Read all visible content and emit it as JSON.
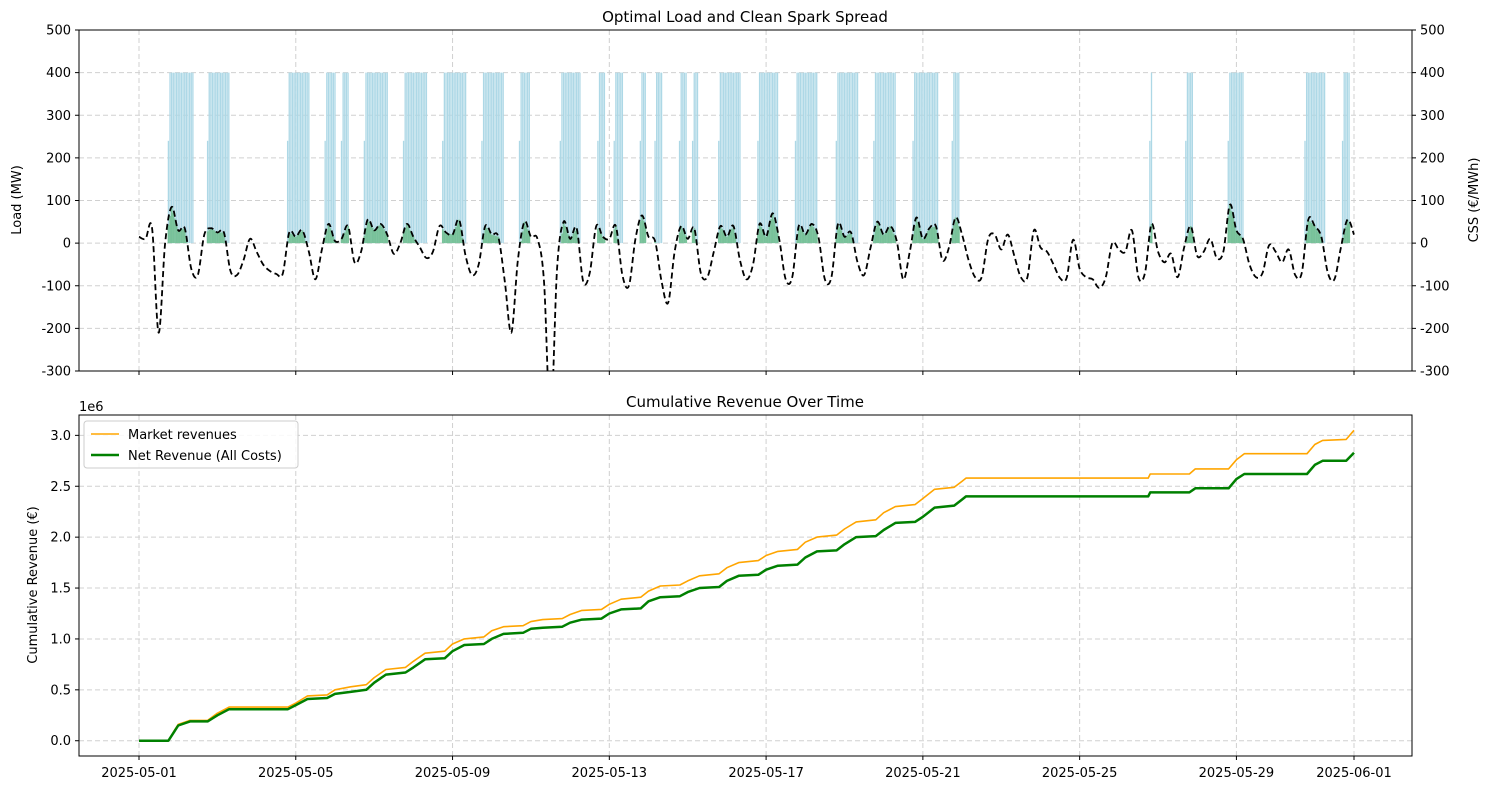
{
  "chart_data": [
    {
      "type": "bar",
      "title": "Optimal Load and Clean Spark Spread",
      "xlabel": "",
      "ylabel": "Load (MW)",
      "ylabel_right": "CSS (€/MWh)",
      "ylim": [
        -300,
        500
      ],
      "ylim_right": [
        -300,
        500
      ],
      "yticks": [
        -300,
        -200,
        -100,
        0,
        100,
        200,
        300,
        400,
        500
      ],
      "x_start": "2025-05-01",
      "x_unit": "days since 2025-05-01",
      "grid": true,
      "colors": {
        "load": "#add8e6",
        "css_positive_fill": "#66b982",
        "css_line": "#000000"
      },
      "load_series": {
        "name": "Load (MW)",
        "level_mw": 400,
        "running_hour_ranges": [
          [
            18,
            33
          ],
          [
            42,
            55
          ],
          [
            91,
            104
          ],
          [
            114,
            120
          ],
          [
            124,
            128
          ],
          [
            138,
            152
          ],
          [
            162,
            176
          ],
          [
            186,
            200
          ],
          [
            210,
            223
          ],
          [
            233,
            239
          ],
          [
            258,
            270
          ],
          [
            281,
            285
          ],
          [
            291,
            296
          ],
          [
            307,
            310
          ],
          [
            316,
            320
          ],
          [
            331,
            335
          ],
          [
            339,
            342
          ],
          [
            355,
            368
          ],
          [
            379,
            391
          ],
          [
            402,
            415
          ],
          [
            427,
            440
          ],
          [
            450,
            463
          ],
          [
            474,
            489
          ],
          [
            498,
            502
          ],
          [
            619,
            620
          ],
          [
            641,
            645
          ],
          [
            667,
            676
          ],
          [
            714,
            726
          ],
          [
            737,
            741
          ]
        ]
      },
      "css_series": {
        "name": "CSS (€/MWh)",
        "step_hours": 4,
        "values": [
          15,
          10,
          35,
          -210,
          0,
          85,
          30,
          35,
          -60,
          -75,
          20,
          35,
          25,
          25,
          -65,
          -75,
          -40,
          10,
          -20,
          -50,
          -65,
          -72,
          -72,
          25,
          15,
          30,
          -20,
          -85,
          -15,
          45,
          5,
          10,
          40,
          -45,
          -20,
          55,
          30,
          45,
          20,
          -25,
          0,
          45,
          15,
          -10,
          -35,
          -20,
          40,
          25,
          20,
          55,
          -30,
          -75,
          -50,
          40,
          20,
          15,
          -90,
          -210,
          -40,
          50,
          15,
          10,
          -90,
          -420,
          -60,
          50,
          10,
          35,
          -90,
          -70,
          40,
          15,
          10,
          40,
          -75,
          -100,
          10,
          65,
          15,
          5,
          -90,
          -140,
          -20,
          40,
          10,
          35,
          -70,
          -80,
          -20,
          40,
          15,
          40,
          -40,
          -85,
          -50,
          45,
          15,
          70,
          10,
          -85,
          -80,
          40,
          20,
          45,
          15,
          -85,
          -80,
          45,
          15,
          25,
          -45,
          -75,
          -10,
          50,
          20,
          40,
          5,
          -85,
          -20,
          60,
          10,
          35,
          40,
          -40,
          -10,
          60,
          20,
          -40,
          -80,
          -80,
          10,
          20,
          -15,
          20,
          -30,
          -80,
          -80,
          30,
          -10,
          -20,
          -50,
          -82,
          -82,
          8,
          -60,
          -80,
          -85,
          -105,
          -80,
          0,
          -15,
          -20,
          30,
          -80,
          -70,
          45,
          -20,
          -45,
          -25,
          -80,
          -10,
          40,
          -30,
          -20,
          10,
          -35,
          -20,
          90,
          30,
          10,
          -50,
          -80,
          -70,
          -5,
          -20,
          -45,
          -15,
          -75,
          -70,
          55,
          40,
          15,
          -70,
          -85,
          -10,
          55,
          20
        ]
      }
    },
    {
      "type": "line",
      "title": "Cumulative Revenue Over Time",
      "xlabel": "",
      "ylabel": "Cumulative Revenue (€)",
      "y_scale_label": "1e6",
      "ylim": [
        -0.15,
        3.2
      ],
      "yticks": [
        "0.0",
        "0.5",
        "1.0",
        "1.5",
        "2.0",
        "2.5",
        "3.0"
      ],
      "xtick_days": [
        0,
        4,
        8,
        12,
        16,
        20,
        24,
        28,
        31
      ],
      "xtick_labels": [
        "2025-05-01",
        "2025-05-05",
        "2025-05-09",
        "2025-05-13",
        "2025-05-17",
        "2025-05-21",
        "2025-05-25",
        "2025-05-29",
        "2025-06-01"
      ],
      "grid": true,
      "legend_position": "top-left",
      "series": [
        {
          "name": "Market revenues",
          "color": "#ffa500",
          "points": [
            [
              0,
              0
            ],
            [
              0.75,
              0
            ],
            [
              0.9,
              0.1
            ],
            [
              1.0,
              0.16
            ],
            [
              1.3,
              0.2
            ],
            [
              1.75,
              0.2
            ],
            [
              2.0,
              0.27
            ],
            [
              2.3,
              0.33
            ],
            [
              3.8,
              0.33
            ],
            [
              4.0,
              0.37
            ],
            [
              4.3,
              0.44
            ],
            [
              4.8,
              0.45
            ],
            [
              5.0,
              0.5
            ],
            [
              5.4,
              0.53
            ],
            [
              5.8,
              0.55
            ],
            [
              6.0,
              0.62
            ],
            [
              6.3,
              0.7
            ],
            [
              6.8,
              0.72
            ],
            [
              7.0,
              0.78
            ],
            [
              7.3,
              0.86
            ],
            [
              7.8,
              0.88
            ],
            [
              8.0,
              0.95
            ],
            [
              8.3,
              1.0
            ],
            [
              8.8,
              1.02
            ],
            [
              9.0,
              1.08
            ],
            [
              9.3,
              1.12
            ],
            [
              9.8,
              1.13
            ],
            [
              10.0,
              1.17
            ],
            [
              10.3,
              1.19
            ],
            [
              10.8,
              1.2
            ],
            [
              11.0,
              1.24
            ],
            [
              11.3,
              1.28
            ],
            [
              11.8,
              1.29
            ],
            [
              12.0,
              1.34
            ],
            [
              12.3,
              1.39
            ],
            [
              12.8,
              1.41
            ],
            [
              13.0,
              1.47
            ],
            [
              13.3,
              1.52
            ],
            [
              13.8,
              1.53
            ],
            [
              14.0,
              1.57
            ],
            [
              14.3,
              1.62
            ],
            [
              14.8,
              1.64
            ],
            [
              15.0,
              1.7
            ],
            [
              15.3,
              1.75
            ],
            [
              15.8,
              1.77
            ],
            [
              16.0,
              1.82
            ],
            [
              16.3,
              1.86
            ],
            [
              16.8,
              1.88
            ],
            [
              17.0,
              1.95
            ],
            [
              17.3,
              2.0
            ],
            [
              17.8,
              2.02
            ],
            [
              18.0,
              2.08
            ],
            [
              18.3,
              2.15
            ],
            [
              18.8,
              2.17
            ],
            [
              19.0,
              2.24
            ],
            [
              19.3,
              2.3
            ],
            [
              19.8,
              2.32
            ],
            [
              20.0,
              2.38
            ],
            [
              20.3,
              2.47
            ],
            [
              20.8,
              2.49
            ],
            [
              21.0,
              2.55
            ],
            [
              21.1,
              2.58
            ],
            [
              25.75,
              2.58
            ],
            [
              25.8,
              2.62
            ],
            [
              26.8,
              2.62
            ],
            [
              26.95,
              2.67
            ],
            [
              27.8,
              2.67
            ],
            [
              28.0,
              2.76
            ],
            [
              28.2,
              2.82
            ],
            [
              29.8,
              2.82
            ],
            [
              30.0,
              2.91
            ],
            [
              30.2,
              2.95
            ],
            [
              30.8,
              2.96
            ],
            [
              31.0,
              3.05
            ]
          ]
        },
        {
          "name": "Net Revenue (All Costs)",
          "color": "#008000",
          "points": [
            [
              0,
              0
            ],
            [
              0.75,
              0
            ],
            [
              0.9,
              0.09
            ],
            [
              1.0,
              0.15
            ],
            [
              1.3,
              0.19
            ],
            [
              1.75,
              0.19
            ],
            [
              2.0,
              0.25
            ],
            [
              2.3,
              0.31
            ],
            [
              3.8,
              0.31
            ],
            [
              4.0,
              0.35
            ],
            [
              4.3,
              0.41
            ],
            [
              4.8,
              0.42
            ],
            [
              5.0,
              0.46
            ],
            [
              5.4,
              0.48
            ],
            [
              5.8,
              0.5
            ],
            [
              6.0,
              0.57
            ],
            [
              6.3,
              0.65
            ],
            [
              6.8,
              0.67
            ],
            [
              7.0,
              0.72
            ],
            [
              7.3,
              0.8
            ],
            [
              7.8,
              0.81
            ],
            [
              8.0,
              0.88
            ],
            [
              8.3,
              0.94
            ],
            [
              8.8,
              0.95
            ],
            [
              9.0,
              1.0
            ],
            [
              9.3,
              1.05
            ],
            [
              9.8,
              1.06
            ],
            [
              10.0,
              1.1
            ],
            [
              10.3,
              1.11
            ],
            [
              10.8,
              1.12
            ],
            [
              11.0,
              1.16
            ],
            [
              11.3,
              1.19
            ],
            [
              11.8,
              1.2
            ],
            [
              12.0,
              1.25
            ],
            [
              12.3,
              1.29
            ],
            [
              12.8,
              1.3
            ],
            [
              13.0,
              1.37
            ],
            [
              13.3,
              1.41
            ],
            [
              13.8,
              1.42
            ],
            [
              14.0,
              1.46
            ],
            [
              14.3,
              1.5
            ],
            [
              14.8,
              1.51
            ],
            [
              15.0,
              1.57
            ],
            [
              15.3,
              1.62
            ],
            [
              15.8,
              1.63
            ],
            [
              16.0,
              1.68
            ],
            [
              16.3,
              1.72
            ],
            [
              16.8,
              1.73
            ],
            [
              17.0,
              1.8
            ],
            [
              17.3,
              1.86
            ],
            [
              17.8,
              1.87
            ],
            [
              18.0,
              1.93
            ],
            [
              18.3,
              2.0
            ],
            [
              18.8,
              2.01
            ],
            [
              19.0,
              2.07
            ],
            [
              19.3,
              2.14
            ],
            [
              19.8,
              2.15
            ],
            [
              20.0,
              2.2
            ],
            [
              20.3,
              2.29
            ],
            [
              20.8,
              2.31
            ],
            [
              21.0,
              2.37
            ],
            [
              21.1,
              2.4
            ],
            [
              25.75,
              2.4
            ],
            [
              25.8,
              2.44
            ],
            [
              26.8,
              2.44
            ],
            [
              26.95,
              2.48
            ],
            [
              27.8,
              2.48
            ],
            [
              28.0,
              2.57
            ],
            [
              28.2,
              2.62
            ],
            [
              29.8,
              2.62
            ],
            [
              30.0,
              2.71
            ],
            [
              30.2,
              2.75
            ],
            [
              30.8,
              2.75
            ],
            [
              31.0,
              2.83
            ]
          ]
        }
      ]
    }
  ]
}
